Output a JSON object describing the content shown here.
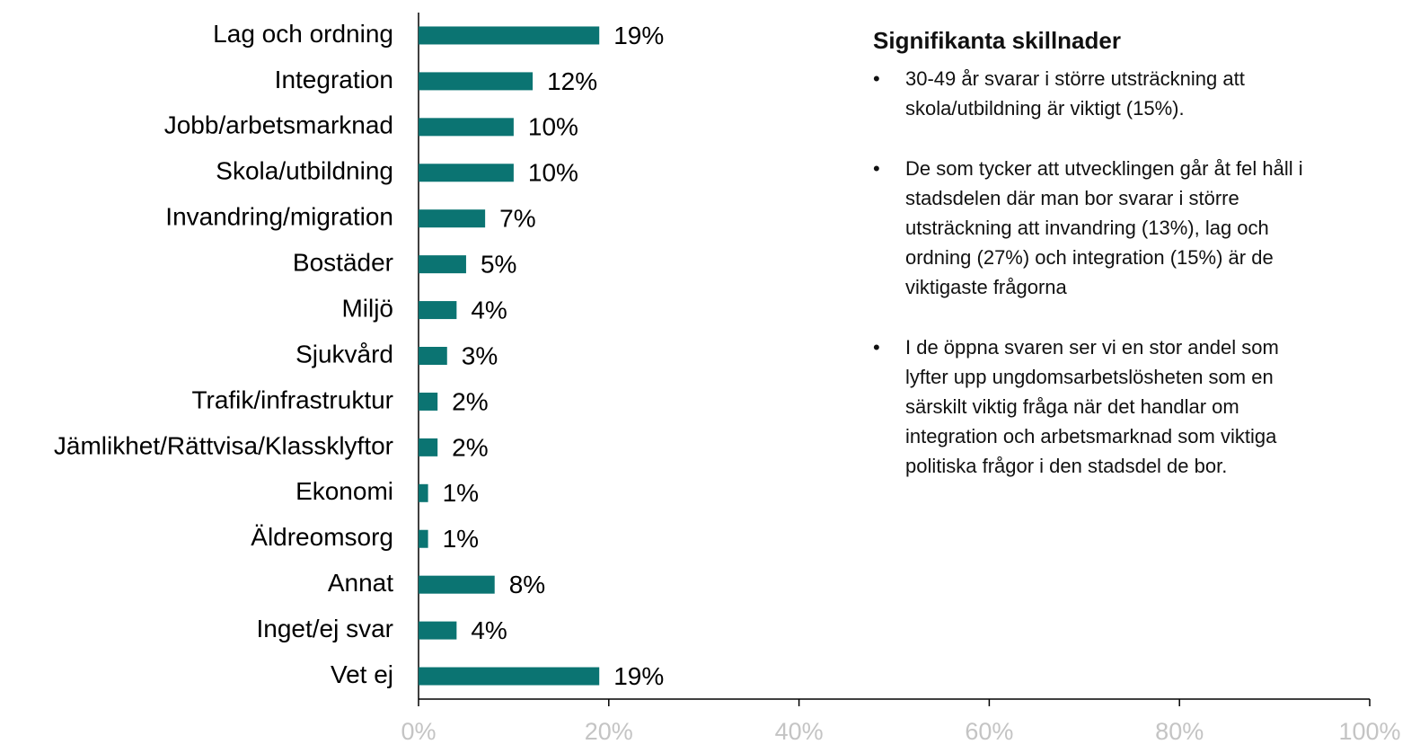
{
  "chart_data": {
    "type": "barh",
    "categories": [
      "Lag och ordning",
      "Integration",
      "Jobb/arbetsmarknad",
      "Skola/utbildning",
      "Invandring/migration",
      "Bostäder",
      "Miljö",
      "Sjukvård",
      "Trafik/infrastruktur",
      "Jämlikhet/Rättvisa/Klassklyftor",
      "Ekonomi",
      "Äldreomsorg",
      "Annat",
      "Inget/ej svar",
      "Vet ej"
    ],
    "values": [
      19,
      12,
      10,
      10,
      7,
      5,
      4,
      3,
      2,
      2,
      1,
      1,
      8,
      4,
      19
    ],
    "value_labels": [
      "19%",
      "12%",
      "10%",
      "10%",
      "7%",
      "5%",
      "4%",
      "3%",
      "2%",
      "2%",
      "1%",
      "1%",
      "8%",
      "4%",
      "19%"
    ],
    "color": "#0b7472",
    "xlim": [
      0,
      100
    ],
    "xticks": [
      {
        "value": 0,
        "label": "0%"
      },
      {
        "value": 20,
        "label": "20%"
      },
      {
        "value": 40,
        "label": "40%"
      },
      {
        "value": 60,
        "label": "60%"
      },
      {
        "value": 80,
        "label": "80%"
      },
      {
        "value": 100,
        "label": "100%"
      }
    ],
    "notes": {
      "title": "Signifikanta skillnader",
      "items": [
        [
          "30-49 år svarar i större utsträckning att",
          "skola/utbildning är viktigt (15%)."
        ],
        [
          "De som tycker att utvecklingen går åt fel håll i",
          "stadsdelen där man bor svarar i större",
          "utsträckning att invandring (13%), lag och",
          "ordning (27%) och integration (15%) är de",
          "viktigaste frågorna"
        ],
        [
          "I de öppna svaren ser vi en stor andel som",
          "lyfter upp ungdomsarbetslösheten som en",
          "särskilt viktig fråga när det handlar om",
          "integration och arbetsmarknad som viktiga",
          "politiska frågor i den stadsdel de bor."
        ]
      ]
    }
  }
}
